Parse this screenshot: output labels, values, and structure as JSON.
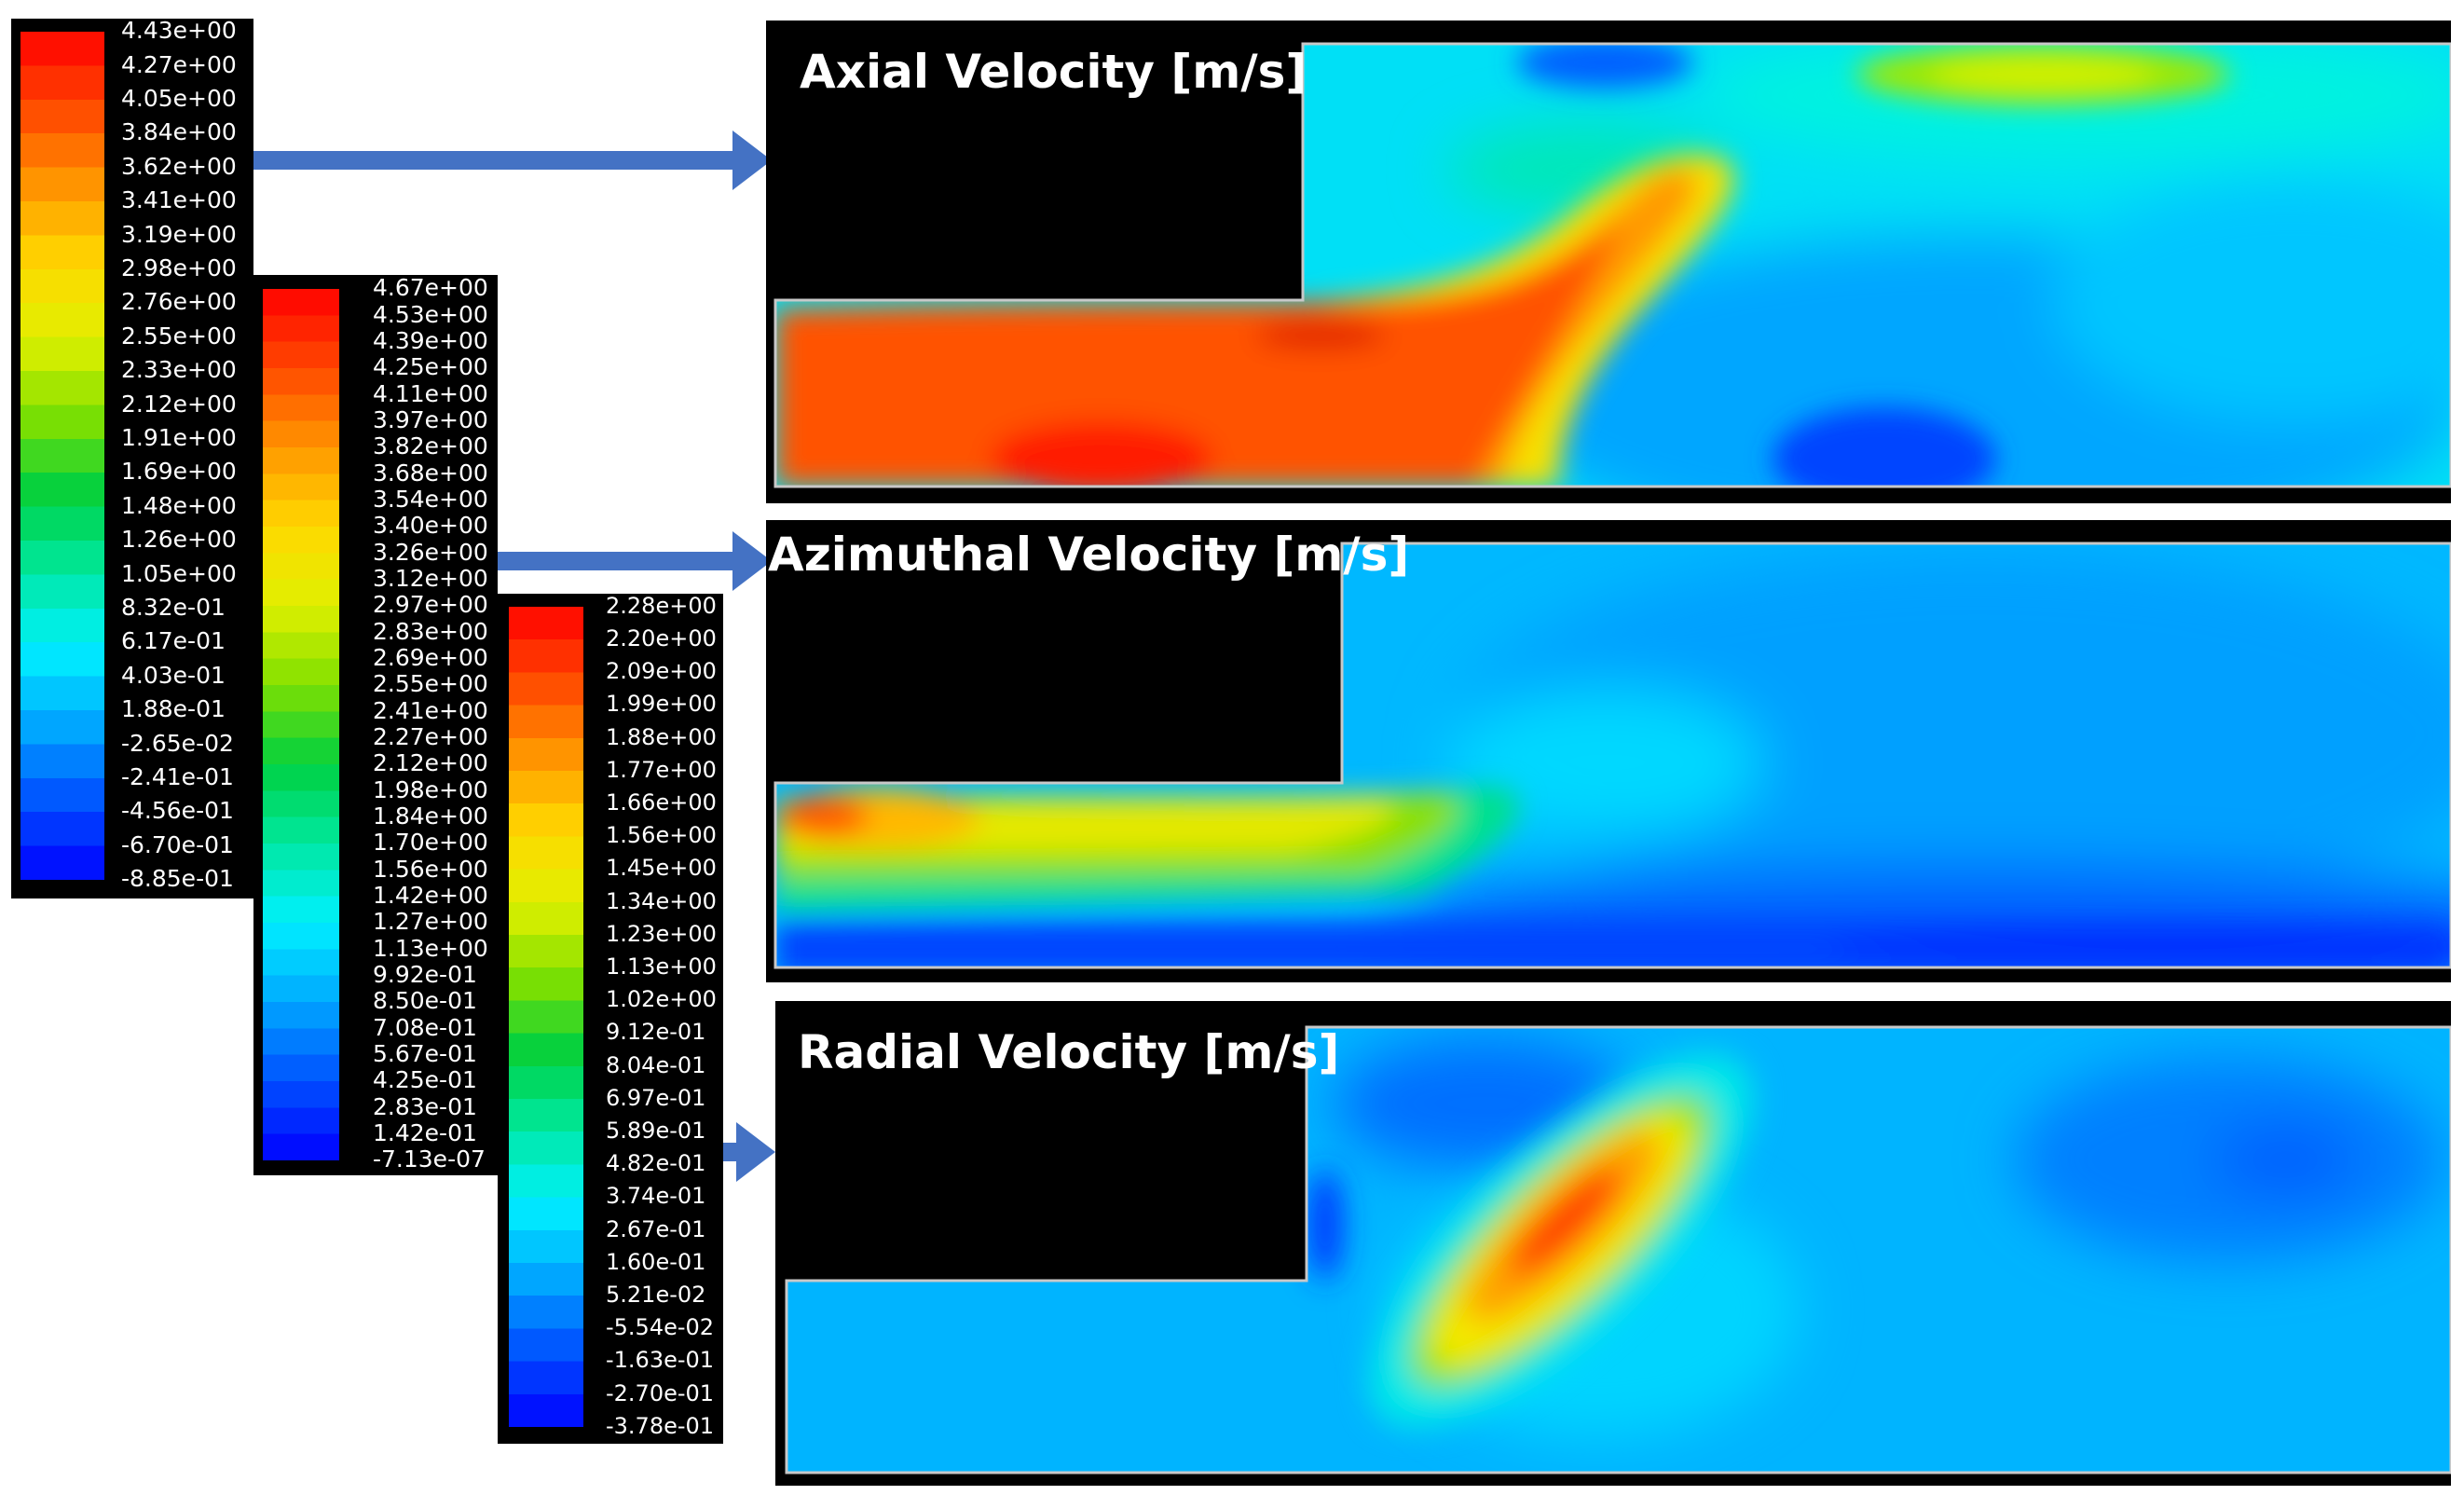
{
  "colormap": [
    "#0000ff",
    "#0050ff",
    "#00a8ff",
    "#00f0ff",
    "#00e8a0",
    "#00d040",
    "#80e000",
    "#e0f000",
    "#ffd800",
    "#ff9600",
    "#ff4800",
    "#ff0000"
  ],
  "legends": [
    {
      "id": "axial",
      "ticks": [
        "4.43e+00",
        "4.27e+00",
        "4.05e+00",
        "3.84e+00",
        "3.62e+00",
        "3.41e+00",
        "3.19e+00",
        "2.98e+00",
        "2.76e+00",
        "2.55e+00",
        "2.33e+00",
        "2.12e+00",
        "1.91e+00",
        "1.69e+00",
        "1.48e+00",
        "1.26e+00",
        "1.05e+00",
        "8.32e-01",
        "6.17e-01",
        "4.03e-01",
        "1.88e-01",
        "-2.65e-02",
        "-2.41e-01",
        "-4.56e-01",
        "-6.70e-01",
        "-8.85e-01"
      ]
    },
    {
      "id": "azimuthal",
      "ticks": [
        "4.67e+00",
        "4.53e+00",
        "4.39e+00",
        "4.25e+00",
        "4.11e+00",
        "3.97e+00",
        "3.82e+00",
        "3.68e+00",
        "3.54e+00",
        "3.40e+00",
        "3.26e+00",
        "3.12e+00",
        "2.97e+00",
        "2.83e+00",
        "2.69e+00",
        "2.55e+00",
        "2.41e+00",
        "2.27e+00",
        "2.12e+00",
        "1.98e+00",
        "1.84e+00",
        "1.70e+00",
        "1.56e+00",
        "1.42e+00",
        "1.27e+00",
        "1.13e+00",
        "9.92e-01",
        "8.50e-01",
        "7.08e-01",
        "5.67e-01",
        "4.25e-01",
        "2.83e-01",
        "1.42e-01",
        "-7.13e-07"
      ]
    },
    {
      "id": "radial",
      "ticks": [
        "2.28e+00",
        "2.20e+00",
        "2.09e+00",
        "1.99e+00",
        "1.88e+00",
        "1.77e+00",
        "1.66e+00",
        "1.56e+00",
        "1.45e+00",
        "1.34e+00",
        "1.23e+00",
        "1.13e+00",
        "1.02e+00",
        "9.12e-01",
        "8.04e-01",
        "6.97e-01",
        "5.89e-01",
        "4.82e-01",
        "3.74e-01",
        "2.67e-01",
        "1.60e-01",
        "5.21e-02",
        "-5.54e-02",
        "-1.63e-01",
        "-2.70e-01",
        "-3.78e-01"
      ]
    }
  ],
  "panels": [
    {
      "id": "axial",
      "title": "Axial Velocity [m/s]"
    },
    {
      "id": "azimuthal",
      "title": "Azimuthal Velocity [m/s]"
    },
    {
      "id": "radial",
      "title": "Radial Velocity [m/s]"
    }
  ],
  "arrow_color": "#4472c4"
}
